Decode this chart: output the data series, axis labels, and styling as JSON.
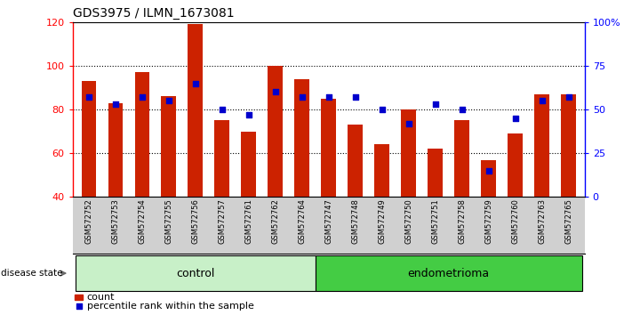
{
  "title": "GDS3975 / ILMN_1673081",
  "samples": [
    "GSM572752",
    "GSM572753",
    "GSM572754",
    "GSM572755",
    "GSM572756",
    "GSM572757",
    "GSM572761",
    "GSM572762",
    "GSM572764",
    "GSM572747",
    "GSM572748",
    "GSM572749",
    "GSM572750",
    "GSM572751",
    "GSM572758",
    "GSM572759",
    "GSM572760",
    "GSM572763",
    "GSM572765"
  ],
  "counts": [
    93,
    83,
    97,
    86,
    119,
    75,
    70,
    100,
    94,
    85,
    73,
    64,
    80,
    62,
    75,
    57,
    69,
    87,
    87
  ],
  "percentiles": [
    57,
    53,
    57,
    55,
    65,
    50,
    47,
    60,
    57,
    57,
    57,
    50,
    42,
    53,
    50,
    15,
    45,
    55,
    57
  ],
  "n_control": 9,
  "ylim_left": [
    40,
    120
  ],
  "ylim_right": [
    0,
    100
  ],
  "bar_color": "#cc2200",
  "dot_color": "#0000cc",
  "sample_bg": "#d0d0d0",
  "control_bg": "#c8f0c8",
  "endometrioma_bg": "#44cc44",
  "legend_count_label": "count",
  "legend_pct_label": "percentile rank within the sample"
}
